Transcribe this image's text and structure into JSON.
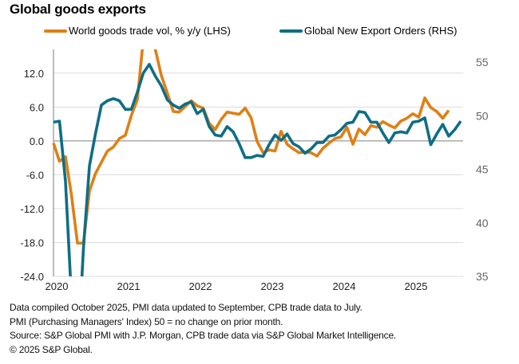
{
  "chart_data": {
    "type": "line",
    "title": "Global goods exports",
    "x_start": "2020-01",
    "x_labels": [
      "2020",
      "2021",
      "2022",
      "2023",
      "2024",
      "2025"
    ],
    "x_months_span": 68.4,
    "y_left": {
      "ticks": [
        "12.0",
        "6.0",
        "0.0",
        "-6.0",
        "-12.0",
        "-18.0",
        "-24.0"
      ],
      "tick_values": [
        12,
        6,
        0,
        -6,
        -12,
        -18,
        -24
      ],
      "range": [
        -24,
        16.2
      ],
      "zero_line": true
    },
    "y_right": {
      "ticks": [
        "55",
        "50",
        "45",
        "40",
        "35"
      ],
      "tick_values": [
        55,
        50,
        45,
        40,
        35
      ],
      "range": [
        35,
        56.2
      ]
    },
    "grid": true,
    "legend_position": "top",
    "series": [
      {
        "name": "World goods trade vol, % y/y (LHS)",
        "axis": "left",
        "color": "#E07F14",
        "values": [
          -0.4,
          -3.6,
          -2.8,
          -9.6,
          -18.1,
          -18.1,
          -8.9,
          -5.8,
          -3.8,
          -1.8,
          -1.1,
          0.4,
          1.0,
          4.5,
          7.3,
          18.0,
          24.0,
          16.2,
          11.6,
          8.5,
          5.2,
          5.1,
          6.1,
          7.1,
          6.2,
          5.8,
          3.1,
          2.0,
          3.8,
          5.1,
          4.9,
          4.7,
          5.8,
          4.1,
          -0.1,
          -2.1,
          -1.6,
          -1.8,
          1.7,
          -0.6,
          -1.4,
          -2.1,
          -2.0,
          -2.1,
          -2.7,
          -1.3,
          -0.4,
          0.4,
          0.7,
          2.4,
          -0.6,
          2.1,
          1.1,
          2.7,
          2.4,
          3.4,
          2.8,
          2.3,
          3.5,
          4.0,
          4.8,
          4.2,
          7.6,
          5.9,
          5.2,
          4.0,
          5.4
        ]
      },
      {
        "name": "Global New Export Orders (RHS)",
        "axis": "right",
        "color": "#0E6E85",
        "values": [
          49.4,
          49.5,
          43.9,
          33.0,
          27.0,
          37.6,
          45.3,
          48.3,
          51.0,
          51.4,
          51.6,
          51.4,
          50.6,
          50.6,
          52.2,
          54.0,
          54.8,
          53.7,
          52.8,
          51.5,
          51.0,
          50.7,
          51.1,
          51.3,
          50.2,
          50.6,
          49.0,
          48.2,
          48.1,
          49.0,
          48.5,
          47.4,
          46.1,
          46.1,
          46.3,
          46.2,
          47.3,
          48.2,
          47.7,
          48.3,
          47.4,
          47.1,
          46.5,
          46.9,
          47.5,
          47.5,
          48.1,
          48.2,
          48.7,
          49.3,
          49.4,
          50.4,
          50.3,
          49.4,
          49.4,
          48.4,
          47.5,
          48.4,
          48.5,
          48.4,
          49.4,
          49.5,
          49.8,
          47.3,
          48.3,
          49.2,
          48.1,
          48.7,
          49.5
        ]
      }
    ]
  },
  "header": {
    "title": "Global goods exports"
  },
  "legend": [
    {
      "label": "World goods trade vol, % y/y (LHS)",
      "color": "#E07F14"
    },
    {
      "label": "Global New Export Orders (RHS)",
      "color": "#0E6E85"
    }
  ],
  "footer": {
    "line1": "Data compiled October 2025, PMI data updated to September, CPB trade data to July.",
    "line2": "PMI (Purchasing Managers' Index) 50 = no change on prior month.",
    "line3": "Source: S&P Global PMI with J.P. Morgan, CPB trade data via S&P Global Market Intelligence.",
    "line4": "© 2025 S&P Global."
  }
}
